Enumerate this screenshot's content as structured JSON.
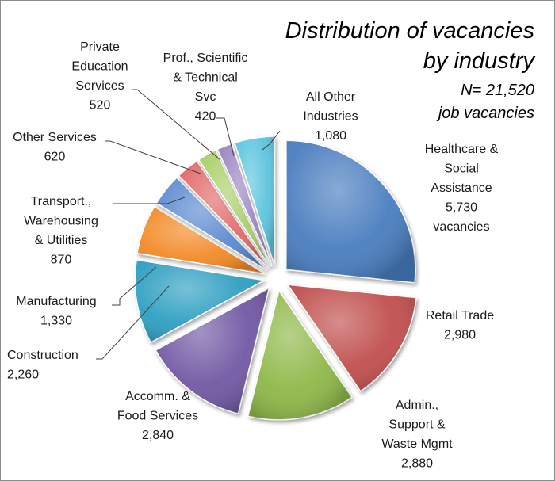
{
  "chart_data": {
    "type": "pie",
    "title": [
      "Distribution of vacancies",
      "by industry"
    ],
    "subtitle": [
      "N= 21,520",
      "job vacancies"
    ],
    "total": 21520,
    "legend": "none",
    "slices": [
      {
        "label": [
          "Healthcare &",
          "Social",
          "Assistance"
        ],
        "value_text": "5,730",
        "value_suffix": "vacancies",
        "value": 5730,
        "color": "#4a7dbf"
      },
      {
        "label": [
          "Retail Trade"
        ],
        "value_text": "2,980",
        "value": 2980,
        "color": "#c0504d"
      },
      {
        "label": [
          "Admin.,",
          "Support &",
          "Waste Mgmt"
        ],
        "value_text": "2,880",
        "value": 2880,
        "color": "#8fb84a"
      },
      {
        "label": [
          "Accomm. &",
          "Food Services"
        ],
        "value_text": "2,840",
        "value": 2840,
        "color": "#7158a3"
      },
      {
        "label": [
          "Construction"
        ],
        "value_text": "2,260",
        "value": 2260,
        "color": "#2e9fc2"
      },
      {
        "label": [
          "Manufacturing"
        ],
        "value_text": "1,330",
        "value": 1330,
        "color": "#f28a28"
      },
      {
        "label": [
          "Transport.,",
          "Warehousing",
          "& Utilities"
        ],
        "value_text": "870",
        "value": 870,
        "color": "#5b8ad2"
      },
      {
        "label": [
          "Other Services"
        ],
        "value_text": "620",
        "value": 620,
        "color": "#e26a6a"
      },
      {
        "label": [
          "Private",
          "Education",
          "Services"
        ],
        "value_text": "520",
        "value": 520,
        "color": "#a9cf6a"
      },
      {
        "label": [
          "Prof., Scientific",
          "& Technical",
          "Svc"
        ],
        "value_text": "420",
        "value": 420,
        "color": "#9a86c2"
      },
      {
        "label": [
          "All Other",
          "Industries"
        ],
        "value_text": "1,080",
        "value": 1080,
        "color": "#5bc5de"
      }
    ]
  }
}
